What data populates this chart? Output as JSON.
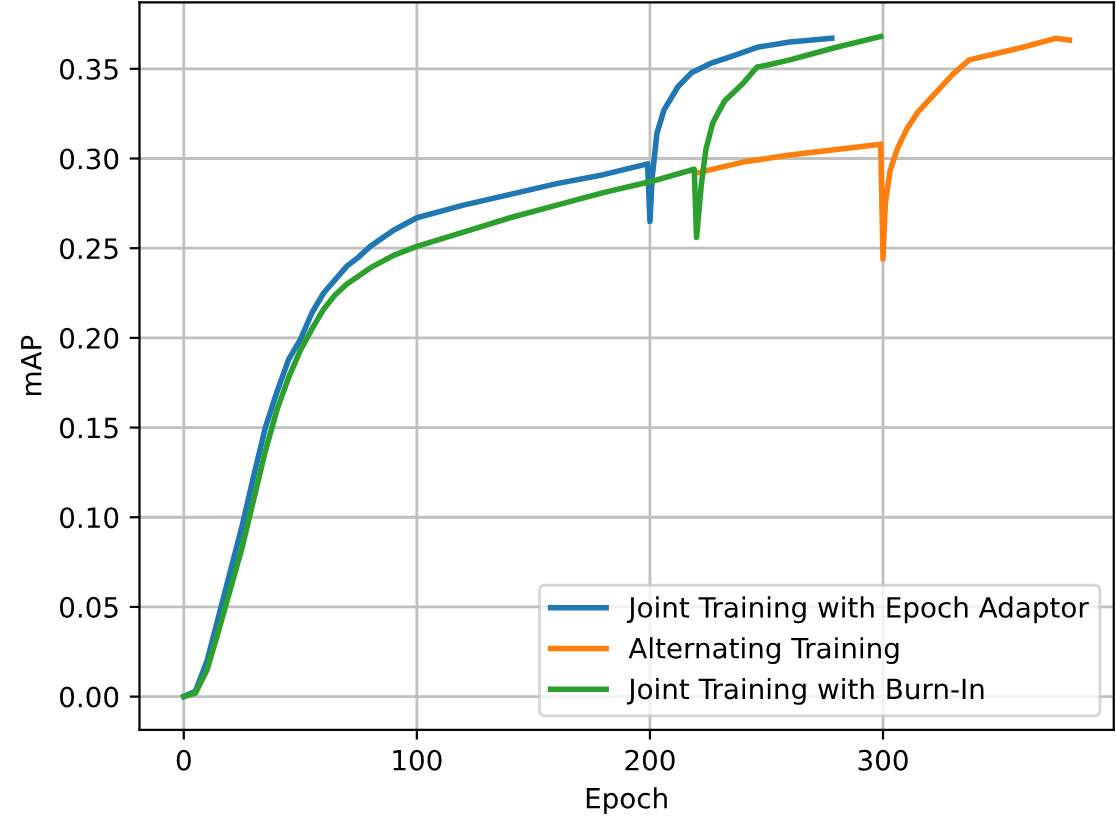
{
  "chart_data": {
    "type": "line",
    "xlabel": "Epoch",
    "ylabel": "mAP",
    "xlim": [
      -19,
      399
    ],
    "xticks": [
      0,
      100,
      200,
      300
    ],
    "ylim": [
      -0.0185,
      0.387
    ],
    "yticks": [
      {
        "value": 0,
        "label": "0.00"
      },
      {
        "value": 0.05,
        "label": "0.05"
      },
      {
        "value": 0.1,
        "label": "0.10"
      },
      {
        "value": 0.15,
        "label": "0.15"
      },
      {
        "value": 0.2,
        "label": "0.20"
      },
      {
        "value": 0.25,
        "label": "0.25"
      },
      {
        "value": 0.3,
        "label": "0.30"
      },
      {
        "value": 0.35,
        "label": "0.35"
      }
    ],
    "grid": true,
    "legend": "bottom right",
    "marker": "none",
    "line_style": "solid",
    "series": [
      {
        "name": "Joint Training with Epoch Adaptor",
        "color": "#1f77b4",
        "x": [
          0,
          5,
          10,
          15,
          20,
          25,
          30,
          35,
          40,
          45,
          50,
          55,
          60,
          70,
          75,
          80,
          90,
          100,
          120,
          140,
          160,
          180,
          199,
          200,
          201,
          203,
          206,
          212,
          218,
          226,
          235,
          246,
          260,
          278
        ],
        "values": [
          0,
          0.003,
          0.02,
          0.045,
          0.07,
          0.095,
          0.123,
          0.15,
          0.17,
          0.188,
          0.199,
          0.214,
          0.225,
          0.24,
          0.245,
          0.251,
          0.26,
          0.267,
          0.274,
          0.28,
          0.286,
          0.291,
          0.297,
          0.265,
          0.29,
          0.314,
          0.327,
          0.34,
          0.348,
          0.353,
          0.357,
          0.362,
          0.365,
          0.367
        ]
      },
      {
        "name": "Alternating Training",
        "color": "#ff7f0e",
        "x": [
          220,
          240,
          260,
          280,
          299,
          300,
          301,
          303,
          306,
          310,
          315,
          320,
          330,
          337,
          350,
          360,
          374,
          380
        ],
        "values": [
          0.292,
          0.298,
          0.302,
          0.305,
          0.308,
          0.244,
          0.275,
          0.293,
          0.305,
          0.316,
          0.326,
          0.333,
          0.347,
          0.355,
          0.359,
          0.362,
          0.367,
          0.366
        ]
      },
      {
        "name": "Joint Training with Burn-In",
        "color": "#2ca02c",
        "x": [
          0,
          5,
          10,
          15,
          20,
          25,
          30,
          35,
          40,
          45,
          50,
          55,
          60,
          65,
          70,
          80,
          90,
          100,
          120,
          140,
          160,
          180,
          200,
          219,
          220,
          222,
          224,
          227,
          232,
          240,
          246,
          250,
          260,
          280,
          299
        ],
        "values": [
          0,
          0.002,
          0.015,
          0.037,
          0.06,
          0.083,
          0.11,
          0.137,
          0.16,
          0.178,
          0.193,
          0.205,
          0.216,
          0.224,
          0.23,
          0.239,
          0.246,
          0.251,
          0.259,
          0.267,
          0.274,
          0.281,
          0.287,
          0.294,
          0.256,
          0.285,
          0.305,
          0.32,
          0.332,
          0.342,
          0.351,
          0.352,
          0.355,
          0.362,
          0.368
        ]
      }
    ]
  }
}
